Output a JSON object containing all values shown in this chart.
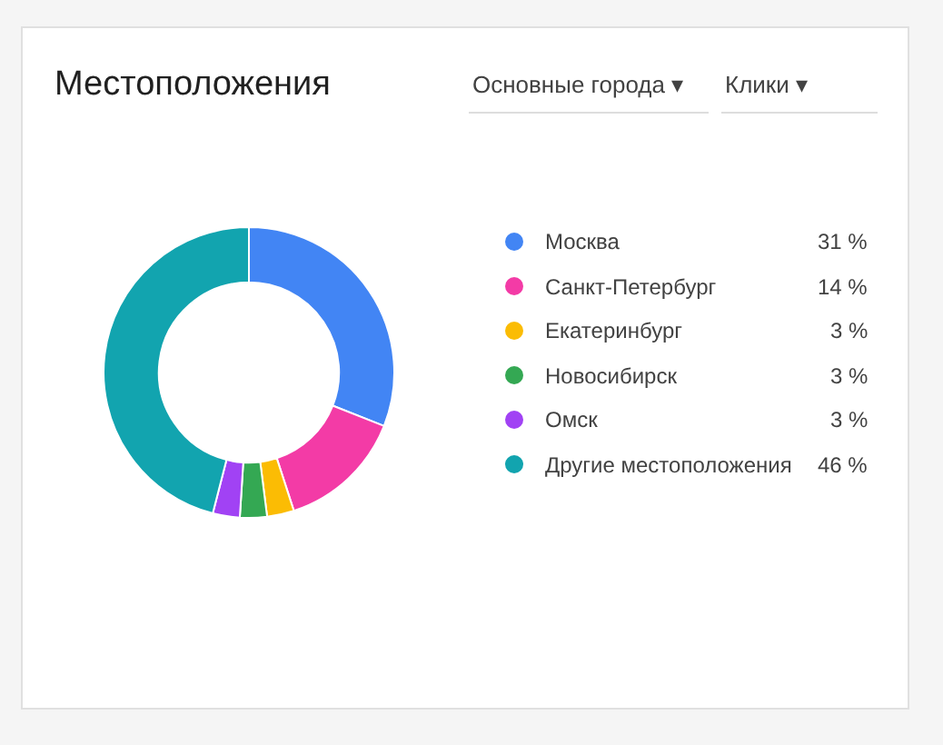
{
  "chart_data": {
    "type": "donut",
    "title": "Местоположения",
    "annotations": [
      "Основные города ▾",
      "Клики ▾"
    ],
    "categories": [
      "Москва",
      "Санкт-Петербург",
      "Екатеринбург",
      "Новосибирск",
      "Омск",
      "Другие местоположения"
    ],
    "values": [
      31,
      14,
      3,
      3,
      3,
      46
    ],
    "colors": [
      "#4285f4",
      "#f33ba6",
      "#fbbc04",
      "#34a853",
      "#a142f4",
      "#12a4af"
    ],
    "value_labels": [
      "31 %",
      "14 %",
      "3 %",
      "3 %",
      "3 %",
      "46 %"
    ],
    "legend": "right"
  }
}
